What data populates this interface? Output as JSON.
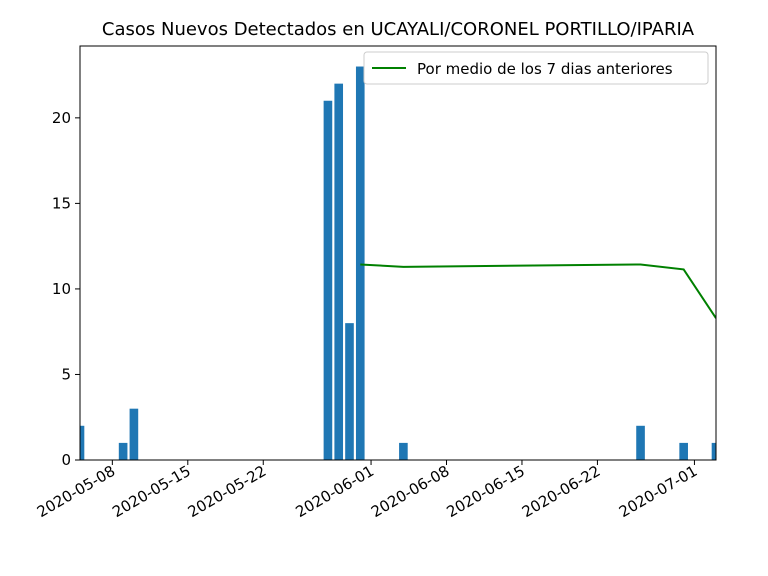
{
  "chart_data": {
    "type": "bar",
    "title": "Casos Nuevos Detectados en UCAYALI/CORONEL PORTILLO/IPARIA",
    "xlabel": "",
    "ylabel": "",
    "x_range": [
      "2020-05-05",
      "2020-07-03"
    ],
    "ylim": [
      0,
      24.2
    ],
    "y_ticks": [
      0,
      5,
      10,
      15,
      20
    ],
    "x_ticks": [
      "2020-05-08",
      "2020-05-15",
      "2020-05-22",
      "2020-06-01",
      "2020-06-08",
      "2020-06-15",
      "2020-06-22",
      "2020-07-01"
    ],
    "grid": false,
    "legend_position": "top-right",
    "bar_color": "#1f77b4",
    "line_color": "#008000",
    "bars": [
      {
        "date": "2020-05-05",
        "value": 2
      },
      {
        "date": "2020-05-06",
        "value": 0
      },
      {
        "date": "2020-05-07",
        "value": 0
      },
      {
        "date": "2020-05-08",
        "value": 0
      },
      {
        "date": "2020-05-09",
        "value": 1
      },
      {
        "date": "2020-05-10",
        "value": 3
      },
      {
        "date": "2020-05-28",
        "value": 21
      },
      {
        "date": "2020-05-29",
        "value": 22
      },
      {
        "date": "2020-05-30",
        "value": 8
      },
      {
        "date": "2020-05-31",
        "value": 23
      },
      {
        "date": "2020-06-04",
        "value": 1
      },
      {
        "date": "2020-06-26",
        "value": 2
      },
      {
        "date": "2020-06-30",
        "value": 1
      },
      {
        "date": "2020-07-03",
        "value": 1
      }
    ],
    "series": [
      {
        "name": "Por medio de los 7 dias anteriores",
        "points": [
          {
            "date": "2020-05-31",
            "value": 11.43
          },
          {
            "date": "2020-06-04",
            "value": 11.29
          },
          {
            "date": "2020-06-26",
            "value": 11.43
          },
          {
            "date": "2020-06-30",
            "value": 11.14
          },
          {
            "date": "2020-07-03",
            "value": 8.29
          }
        ]
      }
    ]
  }
}
